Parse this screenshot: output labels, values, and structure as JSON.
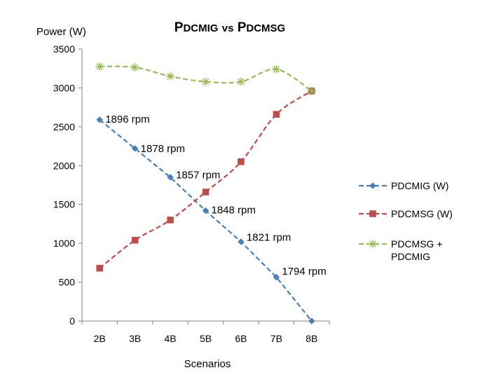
{
  "chart_data": {
    "type": "line",
    "title_main": "PDCMIG vs PDCMSG",
    "xlabel": "Scenarios",
    "ylabel": "Power  (W)",
    "categories": [
      "2B",
      "3B",
      "4B",
      "5B",
      "6B",
      "7B",
      "8B"
    ],
    "ylim": [
      0,
      3500
    ],
    "yticks": [
      0,
      500,
      1000,
      1500,
      2000,
      2500,
      3000,
      3500
    ],
    "yticks_labels": [
      "0",
      "500",
      "1000",
      "1500",
      "2000",
      "2500",
      "3000",
      "3500"
    ],
    "grid": false,
    "legend_position": "right",
    "series": [
      {
        "name": "PDCMIG  (W)",
        "color": "#4a7ebb",
        "marker": "diamond",
        "dashed": true,
        "smooth": false,
        "values": [
          2590,
          2220,
          1850,
          1420,
          1020,
          565,
          0
        ]
      },
      {
        "name": "PDCMSG (W)",
        "color": "#be4b48",
        "marker": "square",
        "dashed": true,
        "smooth": true,
        "values": [
          680,
          1040,
          1300,
          1660,
          2050,
          2660,
          2960
        ]
      },
      {
        "name": "PDCMSG + PDCMIG",
        "name_lines": [
          "PDCMSG +",
          "PDCMIG"
        ],
        "color": "#98b954",
        "marker": "asterisk",
        "dashed": true,
        "smooth": true,
        "values": [
          3275,
          3265,
          3150,
          3080,
          3080,
          3240,
          2960
        ]
      }
    ],
    "annotations": [
      {
        "text": "1896 rpm",
        "category": "2B",
        "y": 2600
      },
      {
        "text": "1878 rpm",
        "category": "3B",
        "y": 2220
      },
      {
        "text": "1857 rpm",
        "category": "4B",
        "y": 1880
      },
      {
        "text": "1848 rpm",
        "category": "5B",
        "y": 1430
      },
      {
        "text": "1821 rpm",
        "category": "6B",
        "y": 1080
      },
      {
        "text": "1794 rpm",
        "category": "7B",
        "y": 640
      }
    ]
  }
}
